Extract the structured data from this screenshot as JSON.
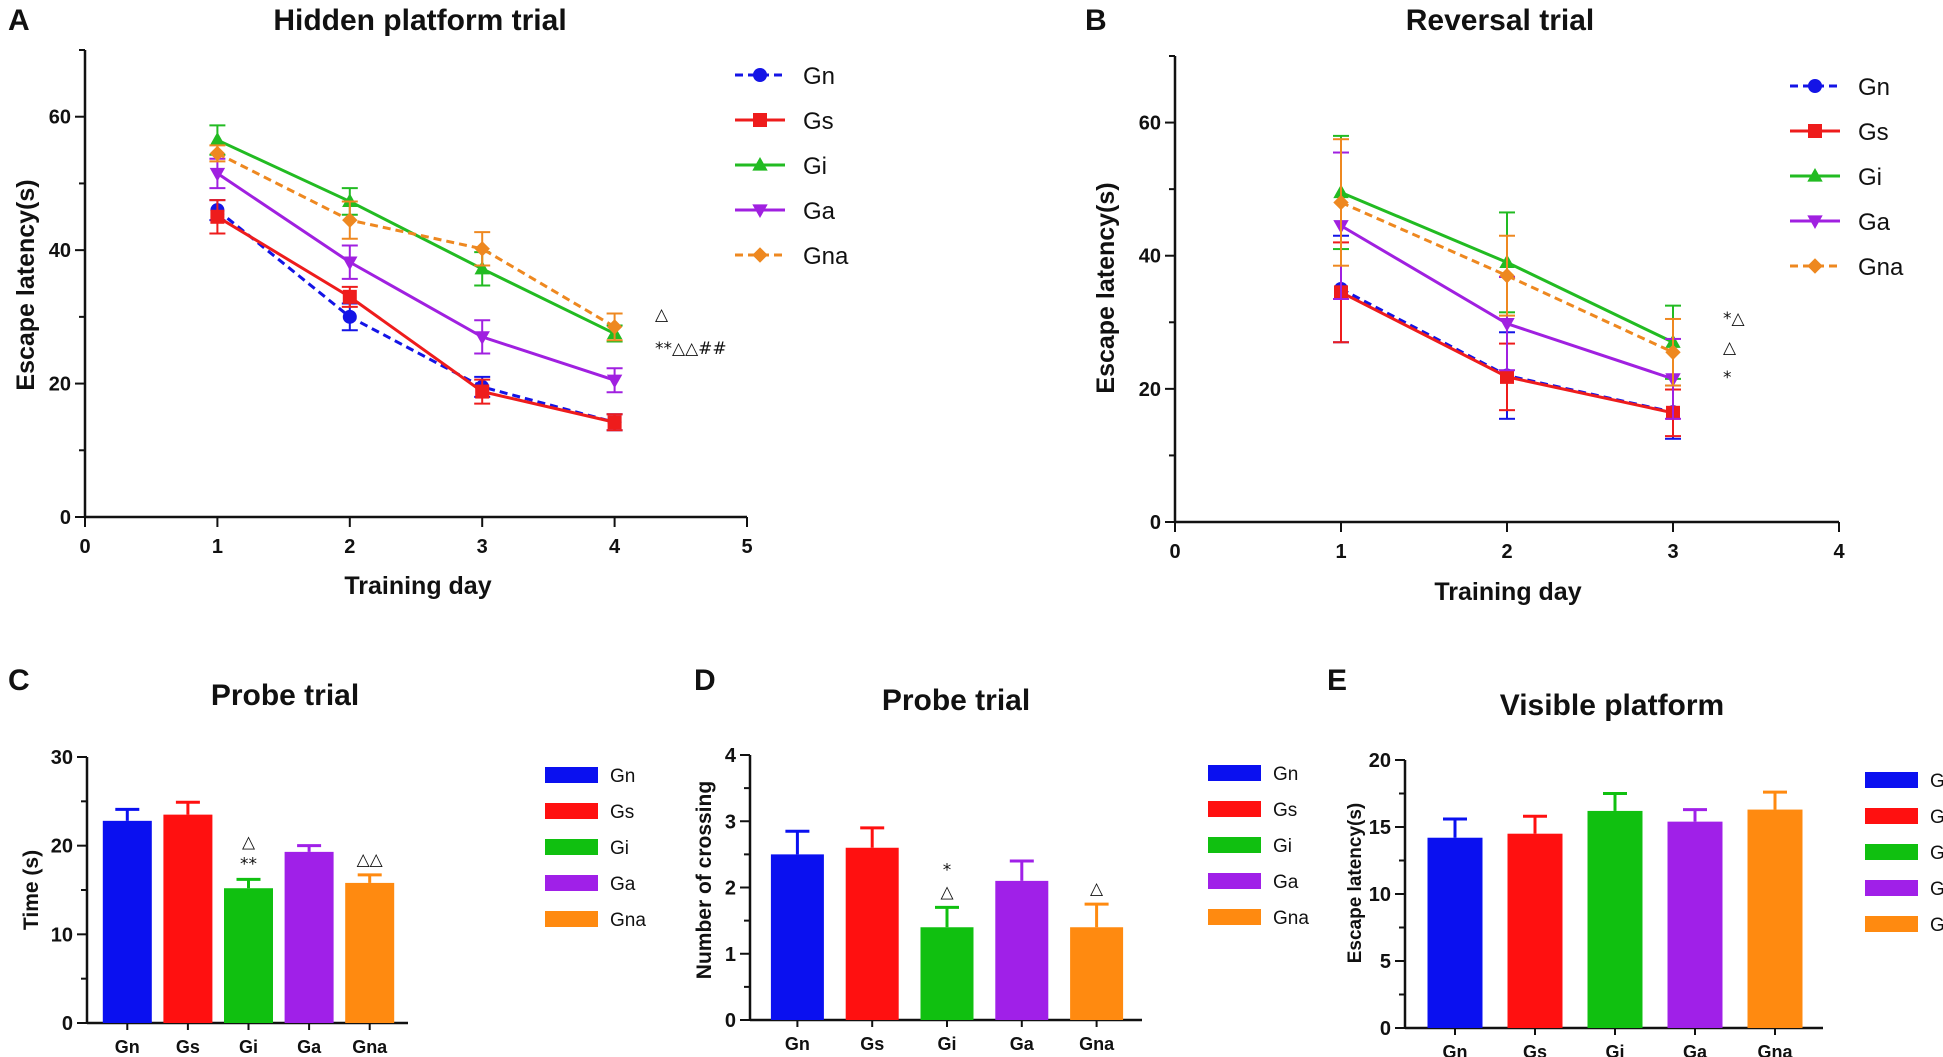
{
  "chart_data": [
    {
      "id": "A",
      "panel_label": "A",
      "type": "line",
      "title": "Hidden platform trial",
      "xlabel": "Training day",
      "ylabel": "Escape latency(s)",
      "xlim": [
        0,
        5
      ],
      "ylim": [
        0,
        70
      ],
      "xticks": [
        0,
        1,
        2,
        3,
        4,
        5
      ],
      "yticks": [
        0,
        20,
        40,
        60
      ],
      "x": [
        1,
        2,
        3,
        4
      ],
      "series": [
        {
          "name": "Gn",
          "color": "#1414e6",
          "marker": "circle",
          "dashed": true,
          "values": [
            46,
            30,
            19.5,
            14.2
          ],
          "errors": [
            1.5,
            2,
            1.5,
            1.2
          ]
        },
        {
          "name": "Gs",
          "color": "#ee1c1c",
          "marker": "square",
          "dashed": false,
          "values": [
            45,
            33,
            18.8,
            14.2
          ],
          "errors": [
            2.5,
            1.5,
            1.8,
            1.2
          ]
        },
        {
          "name": "Gi",
          "color": "#22bb22",
          "marker": "triangle-up",
          "dashed": false,
          "values": [
            56.5,
            47.3,
            37.2,
            27.5
          ],
          "errors": [
            2.2,
            2,
            2.5,
            1.2
          ]
        },
        {
          "name": "Ga",
          "color": "#a020e0",
          "marker": "triangle-down",
          "dashed": false,
          "values": [
            51.5,
            38.2,
            27,
            20.5
          ],
          "errors": [
            2.2,
            2.5,
            2.5,
            1.8
          ]
        },
        {
          "name": "Gna",
          "color": "#ee8820",
          "marker": "diamond",
          "dashed": true,
          "values": [
            54.5,
            44.5,
            40.2,
            28.5
          ],
          "errors": [
            1.2,
            2.8,
            2.5,
            2
          ]
        }
      ],
      "annotations": [
        "△",
        "**△△##"
      ]
    },
    {
      "id": "B",
      "panel_label": "B",
      "type": "line",
      "title": "Reversal trial",
      "xlabel": "Training day",
      "ylabel": "Escape latency(s)",
      "xlim": [
        0,
        4
      ],
      "ylim": [
        0,
        70
      ],
      "xticks": [
        0,
        1,
        2,
        3,
        4
      ],
      "yticks": [
        0,
        20,
        40,
        60
      ],
      "x": [
        1,
        2,
        3
      ],
      "series": [
        {
          "name": "Gn",
          "color": "#1414e6",
          "marker": "circle",
          "dashed": true,
          "values": [
            35,
            22,
            16.5
          ],
          "errors": [
            8,
            6.5,
            4
          ]
        },
        {
          "name": "Gs",
          "color": "#ee1c1c",
          "marker": "square",
          "dashed": false,
          "values": [
            34.5,
            21.8,
            16.4
          ],
          "errors": [
            7.5,
            5,
            3.5
          ]
        },
        {
          "name": "Gi",
          "color": "#22bb22",
          "marker": "triangle-up",
          "dashed": false,
          "values": [
            49.5,
            39,
            27
          ],
          "errors": [
            8.5,
            7.5,
            5.5
          ]
        },
        {
          "name": "Ga",
          "color": "#a020e0",
          "marker": "triangle-down",
          "dashed": false,
          "values": [
            44.5,
            29.8,
            21.5
          ],
          "errors": [
            11,
            7,
            6
          ]
        },
        {
          "name": "Gna",
          "color": "#ee8820",
          "marker": "diamond",
          "dashed": true,
          "values": [
            48,
            37,
            25.5
          ],
          "errors": [
            9.5,
            6,
            5
          ]
        }
      ],
      "annotations": [
        "*△",
        "△",
        "*"
      ]
    },
    {
      "id": "C",
      "panel_label": "C",
      "type": "bar",
      "title": "Probe trial",
      "ylabel": "Time (s)",
      "ylim": [
        0,
        30
      ],
      "yticks": [
        0,
        10,
        20,
        30
      ],
      "categories": [
        "Gn",
        "Gs",
        "Gi",
        "Ga",
        "Gna"
      ],
      "colors": [
        "#0a10f0",
        "#ff1010",
        "#10c010",
        "#a020e8",
        "#ff8a10"
      ],
      "values": [
        22.8,
        23.5,
        15.2,
        19.3,
        15.8
      ],
      "errors": [
        1.3,
        1.4,
        1.0,
        0.7,
        0.9
      ],
      "annotations": [
        {
          "category": "Gi",
          "lines": [
            "△",
            "**"
          ]
        },
        {
          "category": "Gna",
          "lines": [
            "△△"
          ]
        }
      ]
    },
    {
      "id": "D",
      "panel_label": "D",
      "type": "bar",
      "title": "Probe trial",
      "ylabel": "Number of crossing",
      "ylim": [
        0,
        4
      ],
      "yticks": [
        0,
        1,
        2,
        3,
        4
      ],
      "categories": [
        "Gn",
        "Gs",
        "Gi",
        "Ga",
        "Gna"
      ],
      "colors": [
        "#0a10f0",
        "#ff1010",
        "#10c010",
        "#a020e8",
        "#ff8a10"
      ],
      "values": [
        2.5,
        2.6,
        1.4,
        2.1,
        1.4
      ],
      "errors": [
        0.35,
        0.3,
        0.3,
        0.3,
        0.35
      ],
      "annotations": [
        {
          "category": "Gi",
          "lines": [
            "*",
            "△"
          ]
        },
        {
          "category": "Gna",
          "lines": [
            "△"
          ]
        }
      ]
    },
    {
      "id": "E",
      "panel_label": "E",
      "type": "bar",
      "title": "Visible platform",
      "ylabel": "Escape latency(s)",
      "ylim": [
        0,
        20
      ],
      "yticks": [
        0,
        5,
        10,
        15,
        20
      ],
      "categories": [
        "Gn",
        "Gs",
        "Gi",
        "Ga",
        "Gna"
      ],
      "colors": [
        "#0a10f0",
        "#ff1010",
        "#10c010",
        "#a020e8",
        "#ff8a10"
      ],
      "values": [
        14.2,
        14.5,
        16.2,
        15.4,
        16.3
      ],
      "errors": [
        1.4,
        1.3,
        1.3,
        0.9,
        1.3
      ],
      "annotations": []
    }
  ]
}
